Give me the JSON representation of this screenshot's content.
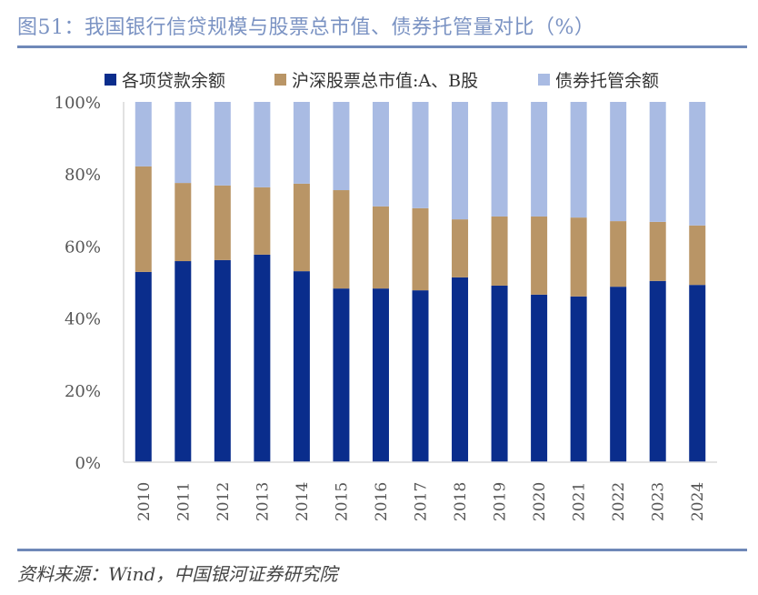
{
  "figure": {
    "title": "图51：我国银行信贷规模与股票总市值、债券托管量对比（%）",
    "source": "资料来源：Wind，中国银河证券研究院"
  },
  "colors": {
    "title": "#7b93c3",
    "rule": "#6f88b8",
    "loans": "#0a2d8c",
    "stocks": "#b99566",
    "bonds": "#a9bbe3"
  },
  "chart_data": {
    "type": "bar",
    "stacked": true,
    "percent_stacked": true,
    "title": "我国银行信贷规模与股票总市值、债券托管量对比（%）",
    "xlabel": "",
    "ylabel": "",
    "ylim": [
      0,
      100
    ],
    "y_ticks": [
      "0%",
      "20%",
      "40%",
      "60%",
      "80%",
      "100%"
    ],
    "y_tick_values": [
      0,
      20,
      40,
      60,
      80,
      100
    ],
    "grid": false,
    "legend_position": "top",
    "categories": [
      "2010",
      "2011",
      "2012",
      "2013",
      "2014",
      "2015",
      "2016",
      "2017",
      "2018",
      "2019",
      "2020",
      "2021",
      "2022",
      "2023",
      "2024"
    ],
    "series": [
      {
        "name": "各项贷款余额",
        "color": "#0a2d8c",
        "values": [
          52.8,
          55.8,
          56.1,
          57.6,
          53.0,
          48.2,
          48.2,
          47.7,
          51.3,
          49.0,
          46.5,
          46.0,
          48.7,
          50.3,
          49.2
        ]
      },
      {
        "name": "沪深股票总市值:A、B股",
        "color": "#b99566",
        "values": [
          29.3,
          21.7,
          20.7,
          18.7,
          24.3,
          27.3,
          22.8,
          22.8,
          16.1,
          19.2,
          21.7,
          21.9,
          18.2,
          16.4,
          16.5
        ]
      },
      {
        "name": "债券托管余额",
        "color": "#a9bbe3",
        "values": [
          17.9,
          22.5,
          23.2,
          23.7,
          22.7,
          24.5,
          29.0,
          29.5,
          32.6,
          31.8,
          31.8,
          32.1,
          33.1,
          33.3,
          34.3
        ]
      }
    ]
  }
}
